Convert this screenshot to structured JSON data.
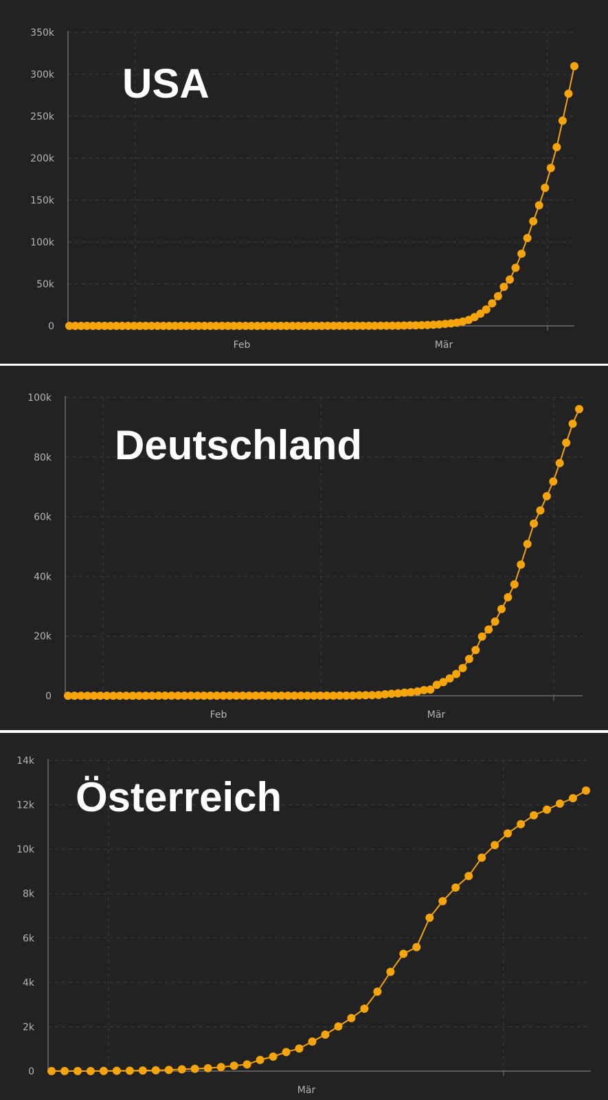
{
  "chart_data": [
    {
      "type": "line",
      "title": "USA",
      "xlabel": "",
      "ylabel": "",
      "ylim": [
        0,
        350000
      ],
      "yticks": [
        "0",
        "50k",
        "100k",
        "150k",
        "200k",
        "250k",
        "300k",
        "350k"
      ],
      "xticks": [
        "Feb",
        "Mär"
      ],
      "grid": true,
      "color": "#f5a50a",
      "values": [
        1,
        1,
        1,
        1,
        1,
        1,
        1,
        2,
        2,
        2,
        2,
        3,
        3,
        5,
        5,
        5,
        6,
        6,
        8,
        8,
        8,
        11,
        11,
        11,
        12,
        12,
        12,
        12,
        12,
        12,
        13,
        13,
        14,
        15,
        15,
        15,
        15,
        15,
        15,
        16,
        16,
        35,
        35,
        35,
        53,
        57,
        60,
        60,
        62,
        64,
        69,
        89,
        105,
        125,
        159,
        221,
        278,
        417,
        537,
        605,
        801,
        1036,
        1303,
        1698,
        2382,
        2974,
        3760,
        5044,
        7040,
        10442,
        14500,
        19624,
        26869,
        35345,
        46450,
        55225,
        69246,
        85991,
        104686,
        124686,
        143786,
        164620,
        188172,
        213144,
        244678,
        276905,
        309643
      ]
    },
    {
      "type": "line",
      "title": "Deutschland",
      "xlabel": "",
      "ylabel": "",
      "ylim": [
        0,
        100000
      ],
      "yticks": [
        "0",
        "20k",
        "40k",
        "60k",
        "80k",
        "100k"
      ],
      "xticks": [
        "Feb",
        "Mär"
      ],
      "grid": true,
      "color": "#f5a50a",
      "values": [
        0,
        0,
        0,
        0,
        0,
        0,
        0,
        0,
        1,
        4,
        4,
        5,
        8,
        10,
        12,
        12,
        12,
        12,
        13,
        13,
        14,
        14,
        16,
        16,
        16,
        16,
        16,
        16,
        16,
        16,
        16,
        16,
        16,
        16,
        16,
        16,
        16,
        16,
        16,
        16,
        17,
        27,
        46,
        48,
        79,
        130,
        159,
        196,
        262,
        482,
        670,
        799,
        1040,
        1176,
        1457,
        1908,
        2078,
        3675,
        4585,
        5795,
        7272,
        9257,
        12327,
        15320,
        19848,
        22213,
        24873,
        29056,
        32986,
        37323,
        43938,
        50871,
        57695,
        62095,
        66885,
        71808,
        77981,
        84794,
        91159,
        96092
      ]
    },
    {
      "type": "line",
      "title": "Österreich",
      "xlabel": "",
      "ylabel": "",
      "ylim": [
        0,
        14000
      ],
      "yticks": [
        "0",
        "2k",
        "4k",
        "6k",
        "8k",
        "10k",
        "12k",
        "14k"
      ],
      "xticks": [
        "Mär"
      ],
      "grid": true,
      "color": "#f5a50a",
      "values": [
        2,
        2,
        3,
        3,
        9,
        14,
        18,
        29,
        41,
        55,
        79,
        104,
        131,
        182,
        246,
        302,
        504,
        655,
        860,
        1018,
        1332,
        1646,
        2013,
        2388,
        2814,
        3582,
        4474,
        5283,
        5588,
        6909,
        7657,
        8271,
        8788,
        9618,
        10180,
        10711,
        11129,
        11524,
        11781,
        12051,
        12297,
        12639
      ]
    }
  ]
}
